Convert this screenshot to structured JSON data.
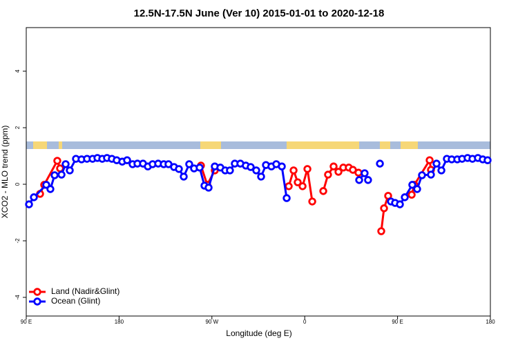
{
  "chart_data": {
    "type": "line",
    "title": "12.5N-17.5N June (Ver 10)   2015-01-01 to 2020-12-18",
    "x_label": "Longitude (deg E)",
    "y_label": "XCO2 - MLO trend (ppm)",
    "xlim": [
      90,
      540
    ],
    "ylim": [
      -4.66,
      5.54
    ],
    "xticks": [
      {
        "value": 90,
        "label": "90 E"
      },
      180,
      {
        "value": 270,
        "label": "90 W"
      },
      {
        "value": 360,
        "label": "0"
      },
      {
        "value": 450,
        "label": "90 E"
      },
      {
        "value": 540,
        "label": "180"
      }
    ],
    "yticks": [
      -4,
      -2,
      0,
      2,
      4
    ],
    "legend": "bottom-left",
    "series": [
      {
        "name": "Land (Nadir&Glint)",
        "color": "#ff0000",
        "x": [
          103.4,
          107.4,
          120.1,
          122.8,
          null,
          259.4,
          265.5,
          272.8,
          null,
          344.5,
          349.2,
          353.2,
          357.9,
          362.6,
          367.3,
          null,
          378,
          382.6,
          388,
          392.7,
          397.4,
          402.7,
          406.7,
          412.1,
          null,
          434.2,
          436.9,
          440.9,
          null,
          463.7,
          466.3,
          481.1,
          482.4
        ],
        "values": [
          -0.34,
          -0.02,
          0.83,
          0.56,
          null,
          0.66,
          -0.02,
          0.49,
          null,
          -0.07,
          0.49,
          0.07,
          -0.07,
          0.54,
          -0.61,
          null,
          -0.24,
          0.34,
          0.63,
          0.44,
          0.59,
          0.59,
          0.51,
          0.41,
          null,
          -1.66,
          -0.85,
          -0.41,
          null,
          -0.37,
          -0.02,
          0.85,
          0.51
        ]
      },
      {
        "name": "Ocean (Glint)",
        "color": "#0000ff",
        "x": [
          92.7,
          97.4,
          109.4,
          113.4,
          117.5,
          124.2,
          128.2,
          132.2,
          138.2,
          143.6,
          148.9,
          154.3,
          159,
          163.7,
          168.3,
          173,
          177.7,
          183.1,
          187.8,
          193.1,
          197.8,
          203.2,
          207.9,
          212.5,
          217.9,
          223.3,
          227.9,
          233.3,
          238,
          242.7,
          248,
          252.7,
          258.1,
          262.8,
          266.8,
          272.8,
          278.2,
          282.9,
          287.5,
          292.2,
          297.6,
          302.9,
          307.6,
          313,
          317.7,
          322.4,
          327.7,
          332.4,
          337.8,
          342.5,
          null,
          412.8,
          418.1,
          421.4,
          null,
          432.9,
          null,
          443.6,
          447.6,
          452.3,
          457,
          464.3,
          469,
          473.7,
          482.4,
          487.8,
          492.5,
          497.8,
          502.5,
          507.9,
          512.6,
          517.9,
          522.6,
          527.9,
          532.6,
          537.3
        ],
        "values": [
          -0.71,
          -0.46,
          -0.02,
          -0.17,
          0.32,
          0.34,
          0.71,
          0.49,
          0.9,
          0.88,
          0.9,
          0.9,
          0.93,
          0.9,
          0.93,
          0.9,
          0.85,
          0.8,
          0.85,
          0.71,
          0.73,
          0.73,
          0.63,
          0.71,
          0.73,
          0.71,
          0.71,
          0.61,
          0.54,
          0.27,
          0.71,
          0.56,
          0.59,
          -0.05,
          -0.12,
          0.63,
          0.59,
          0.49,
          0.49,
          0.73,
          0.73,
          0.66,
          0.61,
          0.49,
          0.27,
          0.68,
          0.63,
          0.71,
          0.63,
          -0.49,
          null,
          0.15,
          0.39,
          0.15,
          null,
          0.73,
          null,
          -0.61,
          -0.66,
          -0.71,
          -0.46,
          -0.02,
          -0.17,
          0.32,
          0.34,
          0.73,
          0.49,
          0.9,
          0.88,
          0.88,
          0.9,
          0.93,
          0.9,
          0.93,
          0.88,
          0.85
        ]
      }
    ]
  }
}
